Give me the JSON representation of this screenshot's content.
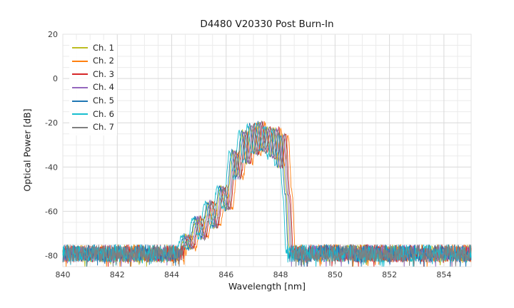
{
  "chart_data": {
    "type": "line",
    "title": "D4480 V20330 Post Burn-In",
    "xlabel": "Wavelength [nm]",
    "ylabel": "Optical Power [dB]",
    "xlim": [
      840,
      855
    ],
    "ylim": [
      -85,
      20
    ],
    "xticks": [
      840,
      842,
      844,
      846,
      848,
      850,
      852,
      854
    ],
    "yticks": [
      20,
      0,
      -20,
      -40,
      -60,
      -80
    ],
    "x_minor_step": 0.5,
    "y_minor_step": 5,
    "grid": true,
    "legend_position": "upper-left",
    "noise_floor_db": -79,
    "noise_amplitude_db": 8,
    "center_nm": 847.3,
    "envelope": [
      [
        -3.05,
        -86
      ],
      [
        -2.7,
        -71
      ],
      [
        -2.55,
        -77
      ],
      [
        -2.3,
        -63
      ],
      [
        -2.1,
        -72
      ],
      [
        -1.85,
        -56
      ],
      [
        -1.65,
        -67
      ],
      [
        -1.4,
        -49
      ],
      [
        -1.2,
        -59
      ],
      [
        -0.95,
        -33
      ],
      [
        -0.8,
        -45
      ],
      [
        -0.6,
        -24
      ],
      [
        -0.45,
        -38
      ],
      [
        -0.3,
        -21
      ],
      [
        -0.15,
        -34
      ],
      [
        0.0,
        -20
      ],
      [
        0.15,
        -33
      ],
      [
        0.3,
        -22
      ],
      [
        0.45,
        -36
      ],
      [
        0.6,
        -23
      ],
      [
        0.72,
        -40
      ],
      [
        0.85,
        -25
      ],
      [
        1.0,
        -52
      ],
      [
        1.15,
        -86
      ]
    ],
    "series": [
      {
        "name": "Ch. 1",
        "color": "#bcbd22",
        "offset_nm": -0.1
      },
      {
        "name": "Ch. 2",
        "color": "#ff7f0e",
        "offset_nm": 0.12
      },
      {
        "name": "Ch. 3",
        "color": "#d62728",
        "offset_nm": 0.04
      },
      {
        "name": "Ch. 4",
        "color": "#9467bd",
        "offset_nm": -0.05
      },
      {
        "name": "Ch. 5",
        "color": "#1f77b4",
        "offset_nm": -0.14
      },
      {
        "name": "Ch. 6",
        "color": "#17becf",
        "offset_nm": -0.22
      },
      {
        "name": "Ch. 7",
        "color": "#7f7f7f",
        "offset_nm": 0.0
      }
    ]
  }
}
